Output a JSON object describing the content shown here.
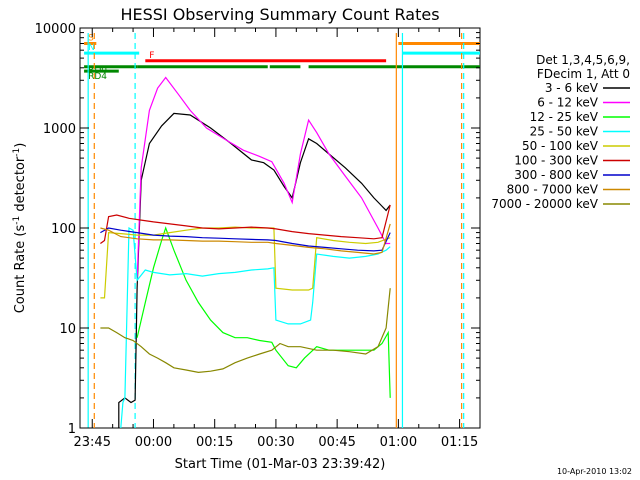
{
  "chart_data": {
    "type": "line",
    "title": "HESSI Observing Summary Count Rates",
    "xlabel": "Start Time (01-Mar-03 23:39:42)",
    "ylabel_parts": [
      "Count Rate (s",
      "-1",
      " detector",
      "-1",
      ")"
    ],
    "yscale": "log",
    "ylim": [
      1,
      10000
    ],
    "xlim_minutes": [
      -18,
      80
    ],
    "x_ticks": [
      {
        "t": -15,
        "label": "23:45"
      },
      {
        "t": 0,
        "label": "00:00"
      },
      {
        "t": 15,
        "label": "00:15"
      },
      {
        "t": 30,
        "label": "00:30"
      },
      {
        "t": 45,
        "label": "00:45"
      },
      {
        "t": 60,
        "label": "01:00"
      },
      {
        "t": 75,
        "label": "01:15"
      }
    ],
    "y_ticks": [
      {
        "v": 1,
        "label": "1"
      },
      {
        "v": 10,
        "label": "10"
      },
      {
        "v": 100,
        "label": "100"
      },
      {
        "v": 1000,
        "label": "1000"
      },
      {
        "v": 10000,
        "label": "10000"
      }
    ],
    "legend_header": [
      "Det 1,3,4,5,6,9,",
      "FDecim 1, Att 0"
    ],
    "series": [
      {
        "name": "3 - 6 keV",
        "color": "#000000",
        "points": [
          [
            -8.5,
            1
          ],
          [
            -8.5,
            1.8
          ],
          [
            -7,
            2
          ],
          [
            -5.5,
            1.8
          ],
          [
            -4.5,
            1.9
          ],
          [
            -4,
            25
          ],
          [
            -3,
            300
          ],
          [
            -1,
            700
          ],
          [
            2,
            1050
          ],
          [
            5,
            1400
          ],
          [
            9,
            1350
          ],
          [
            14,
            1000
          ],
          [
            19,
            700
          ],
          [
            24,
            480
          ],
          [
            27,
            450
          ],
          [
            29.5,
            380
          ],
          [
            32,
            260
          ],
          [
            34,
            200
          ],
          [
            36,
            450
          ],
          [
            38,
            780
          ],
          [
            40,
            700
          ],
          [
            43,
            550
          ],
          [
            47,
            400
          ],
          [
            51,
            280
          ],
          [
            54,
            200
          ],
          [
            57,
            150
          ],
          [
            58,
            170
          ]
        ]
      },
      {
        "name": "6 - 12 keV",
        "color": "#ff00ff",
        "points": [
          [
            -4,
            30
          ],
          [
            -3,
            400
          ],
          [
            -1,
            1500
          ],
          [
            1,
            2500
          ],
          [
            3,
            3200
          ],
          [
            6,
            2200
          ],
          [
            9,
            1500
          ],
          [
            13,
            1000
          ],
          [
            18,
            750
          ],
          [
            22,
            600
          ],
          [
            26,
            520
          ],
          [
            29,
            460
          ],
          [
            32,
            280
          ],
          [
            34,
            180
          ],
          [
            36,
            550
          ],
          [
            38,
            1200
          ],
          [
            40,
            900
          ],
          [
            43,
            550
          ],
          [
            47,
            330
          ],
          [
            51,
            200
          ],
          [
            55,
            100
          ],
          [
            57,
            70
          ],
          [
            58,
            70
          ]
        ]
      },
      {
        "name": "12 - 25 keV",
        "color": "#00ff00",
        "points": [
          [
            -4,
            8
          ],
          [
            -2,
            18
          ],
          [
            0,
            40
          ],
          [
            2,
            75
          ],
          [
            3,
            100
          ],
          [
            5,
            60
          ],
          [
            8,
            30
          ],
          [
            11,
            18
          ],
          [
            14,
            12
          ],
          [
            17,
            9
          ],
          [
            20,
            8
          ],
          [
            23,
            8
          ],
          [
            26,
            7.5
          ],
          [
            29,
            7.2
          ],
          [
            30,
            6
          ],
          [
            33,
            4.2
          ],
          [
            35,
            4
          ],
          [
            37,
            5
          ],
          [
            40,
            6.5
          ],
          [
            43,
            6
          ],
          [
            47,
            6
          ],
          [
            51,
            6
          ],
          [
            54,
            6
          ],
          [
            56,
            7
          ],
          [
            57.5,
            9
          ],
          [
            58,
            2
          ]
        ]
      },
      {
        "name": "25 - 50 keV",
        "color": "#00ffff",
        "points": [
          [
            -8,
            1
          ],
          [
            -7.5,
            1.8
          ],
          [
            -7,
            2
          ],
          [
            -6,
            100
          ],
          [
            -5,
            95
          ],
          [
            -4,
            30
          ],
          [
            -2,
            38
          ],
          [
            0,
            36
          ],
          [
            4,
            34
          ],
          [
            8,
            35
          ],
          [
            12,
            33
          ],
          [
            16,
            35
          ],
          [
            20,
            36
          ],
          [
            24,
            38
          ],
          [
            28,
            39
          ],
          [
            29.5,
            40
          ],
          [
            30,
            12
          ],
          [
            33,
            11
          ],
          [
            36,
            11
          ],
          [
            38.5,
            12
          ],
          [
            39,
            18
          ],
          [
            40,
            55
          ],
          [
            44,
            52
          ],
          [
            48,
            50
          ],
          [
            52,
            52
          ],
          [
            55,
            55
          ],
          [
            57,
            60
          ],
          [
            58,
            65
          ]
        ]
      },
      {
        "name": "50 - 100 keV",
        "color": "#cccc00",
        "points": [
          [
            -13,
            20
          ],
          [
            -12,
            20
          ],
          [
            -11,
            90
          ],
          [
            -8,
            88
          ],
          [
            -4,
            85
          ],
          [
            0,
            85
          ],
          [
            4,
            90
          ],
          [
            8,
            95
          ],
          [
            12,
            100
          ],
          [
            16,
            100
          ],
          [
            20,
            102
          ],
          [
            24,
            100
          ],
          [
            28,
            100
          ],
          [
            29.5,
            100
          ],
          [
            30,
            25
          ],
          [
            34,
            24
          ],
          [
            38,
            24
          ],
          [
            39,
            25
          ],
          [
            40,
            80
          ],
          [
            44,
            75
          ],
          [
            48,
            72
          ],
          [
            52,
            70
          ],
          [
            55,
            72
          ],
          [
            58,
            80
          ]
        ]
      },
      {
        "name": "100 - 300 keV",
        "color": "#cc0000",
        "points": [
          [
            -13,
            70
          ],
          [
            -12,
            75
          ],
          [
            -11,
            130
          ],
          [
            -9,
            135
          ],
          [
            -6,
            125
          ],
          [
            -3,
            120
          ],
          [
            0,
            115
          ],
          [
            4,
            110
          ],
          [
            8,
            105
          ],
          [
            12,
            100
          ],
          [
            16,
            98
          ],
          [
            20,
            100
          ],
          [
            24,
            102
          ],
          [
            28,
            100
          ],
          [
            30,
            98
          ],
          [
            34,
            92
          ],
          [
            38,
            88
          ],
          [
            42,
            85
          ],
          [
            46,
            82
          ],
          [
            50,
            80
          ],
          [
            54,
            78
          ],
          [
            56,
            80
          ],
          [
            58,
            170
          ]
        ]
      },
      {
        "name": "300 - 800 keV",
        "color": "#0000cc",
        "points": [
          [
            -13,
            90
          ],
          [
            -11,
            100
          ],
          [
            -8,
            95
          ],
          [
            -4,
            90
          ],
          [
            0,
            85
          ],
          [
            4,
            83
          ],
          [
            8,
            82
          ],
          [
            12,
            80
          ],
          [
            16,
            79
          ],
          [
            20,
            78
          ],
          [
            24,
            77
          ],
          [
            28,
            76
          ],
          [
            30,
            75
          ],
          [
            34,
            70
          ],
          [
            38,
            66
          ],
          [
            42,
            64
          ],
          [
            46,
            62
          ],
          [
            50,
            60
          ],
          [
            54,
            59
          ],
          [
            56,
            60
          ],
          [
            58,
            90
          ]
        ]
      },
      {
        "name": "800 - 7000 keV",
        "color": "#cc8800",
        "points": [
          [
            -13,
            100
          ],
          [
            -11,
            95
          ],
          [
            -8,
            82
          ],
          [
            -4,
            78
          ],
          [
            0,
            76
          ],
          [
            4,
            76
          ],
          [
            8,
            75
          ],
          [
            12,
            74
          ],
          [
            16,
            74
          ],
          [
            20,
            73
          ],
          [
            24,
            72
          ],
          [
            28,
            72
          ],
          [
            30,
            70
          ],
          [
            34,
            67
          ],
          [
            38,
            64
          ],
          [
            42,
            62
          ],
          [
            46,
            59
          ],
          [
            50,
            57
          ],
          [
            54,
            55
          ],
          [
            56,
            57
          ],
          [
            58,
            110
          ]
        ]
      },
      {
        "name": "7000 - 20000 keV",
        "color": "#888800",
        "points": [
          [
            -13,
            10
          ],
          [
            -11,
            10
          ],
          [
            -9,
            9
          ],
          [
            -7,
            8
          ],
          [
            -5,
            7.5
          ],
          [
            -3,
            6.5
          ],
          [
            -1,
            5.5
          ],
          [
            1,
            5
          ],
          [
            3,
            4.5
          ],
          [
            5,
            4
          ],
          [
            8,
            3.8
          ],
          [
            11,
            3.6
          ],
          [
            14,
            3.7
          ],
          [
            17,
            3.9
          ],
          [
            20,
            4.5
          ],
          [
            23,
            5
          ],
          [
            26,
            5.5
          ],
          [
            29,
            6
          ],
          [
            31,
            7
          ],
          [
            33,
            6.5
          ],
          [
            36,
            6.5
          ],
          [
            40,
            6
          ],
          [
            44,
            6
          ],
          [
            48,
            5.8
          ],
          [
            52,
            5.5
          ],
          [
            55,
            6.5
          ],
          [
            57,
            10
          ],
          [
            58,
            25
          ]
        ]
      }
    ],
    "attenuator_flags": [
      {
        "label": "S",
        "color": "#ff8800",
        "segments": [
          [
            -17,
            -14
          ],
          [
            60,
            80
          ]
        ],
        "level": 7000
      },
      {
        "label": "N",
        "color": "#00ffff",
        "segments": [
          [
            -17,
            -3.5
          ],
          [
            61,
            80
          ]
        ],
        "level": 5600
      },
      {
        "label": "F",
        "color": "#ff0000",
        "segments": [
          [
            -2,
            57
          ]
        ],
        "level": 4700
      },
      {
        "label": "RD0",
        "color": "#008800",
        "segments": [
          [
            -17,
            -4
          ],
          [
            -4,
            28
          ],
          [
            28.5,
            36
          ],
          [
            38,
            80
          ]
        ],
        "level": 4100
      },
      {
        "label": "RD4",
        "color": "#008800",
        "segments": [
          [
            -17,
            -8.5
          ]
        ],
        "level": 3700
      }
    ],
    "vertical_markers": [
      {
        "t": -16,
        "color": "#00ffff",
        "style": "solid"
      },
      {
        "t": -14.5,
        "color": "#ff8800",
        "style": "dashed"
      },
      {
        "t": -4.5,
        "color": "#00ffff",
        "style": "dashed"
      },
      {
        "t": 59.5,
        "color": "#ff8800",
        "style": "solid"
      },
      {
        "t": 61,
        "color": "#00ffff",
        "style": "solid"
      },
      {
        "t": 75.5,
        "color": "#ff8800",
        "style": "dashed"
      },
      {
        "t": 76,
        "color": "#00ffff",
        "style": "dashed"
      }
    ],
    "grid": false,
    "legend_position": "right"
  },
  "footer": {
    "timestamp": "10-Apr-2010 13:02"
  }
}
